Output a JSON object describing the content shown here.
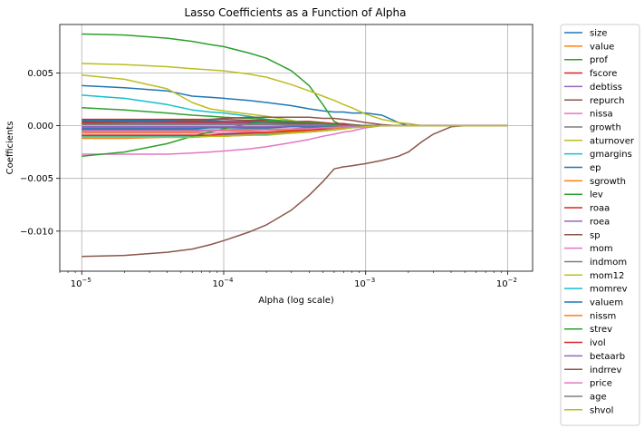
{
  "chart_data": {
    "type": "line",
    "title": "Lasso Coefficients as a Function of Alpha",
    "xlabel": "Alpha (log scale)",
    "ylabel": "Coefficients",
    "xscale": "log",
    "xlim": [
      7e-06,
      0.015
    ],
    "ylim": [
      -0.0138,
      0.0096
    ],
    "x_ticks": [
      {
        "value": 1e-05,
        "base": "10",
        "exp": "−5"
      },
      {
        "value": 0.0001,
        "base": "10",
        "exp": "−4"
      },
      {
        "value": 0.001,
        "base": "10",
        "exp": "−3"
      },
      {
        "value": 0.01,
        "base": "10",
        "exp": "−2"
      }
    ],
    "y_ticks": [
      {
        "value": 0.005,
        "label": "0.005"
      },
      {
        "value": 0.0,
        "label": "0.000"
      },
      {
        "value": -0.005,
        "label": "−0.005"
      },
      {
        "value": -0.01,
        "label": "−0.010"
      }
    ],
    "grid": true,
    "legend_position": "outside-right",
    "x": [
      1e-05,
      2e-05,
      4e-05,
      6e-05,
      8e-05,
      0.0001,
      0.00015,
      0.0002,
      0.0003,
      0.0004,
      0.0005,
      0.0006,
      0.0007,
      0.0008,
      0.001,
      0.0013,
      0.0017,
      0.002,
      0.0025,
      0.003,
      0.004,
      0.005,
      0.007,
      0.01
    ],
    "series": [
      {
        "name": "size",
        "color": "#1f77b4",
        "values": [
          0.0038,
          0.0036,
          0.0033,
          0.0028,
          0.0027,
          0.0026,
          0.0024,
          0.0022,
          0.0019,
          0.0016,
          0.0014,
          0.0013,
          0.0013,
          0.0012,
          0.0012,
          0.001,
          0.0003,
          0,
          0,
          0,
          0,
          0,
          0,
          0
        ]
      },
      {
        "name": "value",
        "color": "#ff7f0e",
        "values": [
          -0.0012,
          -0.0012,
          -0.0011,
          -0.0011,
          -0.001,
          -0.001,
          -0.0009,
          -0.0008,
          -0.0006,
          -0.0004,
          -0.0003,
          -0.0002,
          -0.0001,
          -0.0001,
          0,
          0,
          0,
          0,
          0,
          0,
          0,
          0,
          0,
          0
        ]
      },
      {
        "name": "prof",
        "color": "#2ca02c",
        "values": [
          0.0087,
          0.0086,
          0.0083,
          0.008,
          0.0077,
          0.0075,
          0.0069,
          0.0064,
          0.0052,
          0.0038,
          0.002,
          0.0004,
          0,
          0,
          0,
          0,
          0,
          0,
          0,
          0,
          0,
          0,
          0,
          0
        ]
      },
      {
        "name": "fscore",
        "color": "#d62728",
        "values": [
          0.0006,
          0.0006,
          0.0006,
          0.0006,
          0.0006,
          0.0006,
          0.0005,
          0.0005,
          0.0004,
          0.0004,
          0.0003,
          0.0002,
          0.0002,
          0.0001,
          0,
          0,
          0,
          0,
          0,
          0,
          0,
          0,
          0,
          0
        ]
      },
      {
        "name": "debtiss",
        "color": "#9467bd",
        "values": [
          -0.0002,
          -0.0002,
          -0.0002,
          -0.0002,
          -0.0002,
          -0.0002,
          -0.0002,
          -0.0001,
          -0.0001,
          -0.0001,
          -0.0001,
          -0.0001,
          0,
          0,
          0,
          0,
          0,
          0,
          0,
          0,
          0,
          0,
          0,
          0
        ]
      },
      {
        "name": "repurch",
        "color": "#8c564b",
        "values": [
          0.0004,
          0.0004,
          0.0004,
          0.0004,
          0.0004,
          0.0003,
          0.0003,
          0.0003,
          0.0002,
          0.0002,
          0.0002,
          0.0001,
          0.0001,
          0.0001,
          0,
          0,
          0,
          0,
          0,
          0,
          0,
          0,
          0,
          0
        ]
      },
      {
        "name": "nissa",
        "color": "#e377c2",
        "values": [
          -0.0007,
          -0.0007,
          -0.0007,
          -0.0007,
          -0.0007,
          -0.0007,
          -0.0006,
          -0.0006,
          -0.0005,
          -0.0004,
          -0.0003,
          -0.0002,
          -0.0002,
          -0.0001,
          0,
          0,
          0,
          0,
          0,
          0,
          0,
          0,
          0,
          0
        ]
      },
      {
        "name": "growth",
        "color": "#7f7f7f",
        "values": [
          -0.0004,
          -0.0004,
          -0.0004,
          -0.0004,
          -0.0004,
          -0.0004,
          -0.0003,
          -0.0003,
          -0.0003,
          -0.0002,
          -0.0002,
          -0.0002,
          -0.0001,
          -0.0001,
          0,
          0,
          0,
          0,
          0,
          0,
          0,
          0,
          0,
          0
        ]
      },
      {
        "name": "aturnover",
        "color": "#bcbd22",
        "values": [
          0.0048,
          0.0044,
          0.0035,
          0.0022,
          0.0016,
          0.0014,
          0.0011,
          0.0009,
          0.0005,
          0.0002,
          0.0001,
          0,
          0,
          0,
          0,
          0,
          0,
          0,
          0,
          0,
          0,
          0,
          0,
          0
        ]
      },
      {
        "name": "gmargins",
        "color": "#17becf",
        "values": [
          0.0029,
          0.0026,
          0.002,
          0.0015,
          0.0013,
          0.0012,
          0.0009,
          0.0006,
          0.0002,
          0,
          0,
          0,
          0,
          0,
          0,
          0,
          0,
          0,
          0,
          0,
          0,
          0,
          0,
          0
        ]
      },
      {
        "name": "ep",
        "color": "#1f77b4",
        "values": [
          0.0005,
          0.0005,
          0.0005,
          0.0005,
          0.0005,
          0.0004,
          0.0004,
          0.0004,
          0.0003,
          0.0002,
          0.0002,
          0.0001,
          0.0001,
          0,
          0,
          0,
          0,
          0,
          0,
          0,
          0,
          0,
          0,
          0
        ]
      },
      {
        "name": "sgrowth",
        "color": "#ff7f0e",
        "values": [
          -0.0009,
          -0.0009,
          -0.0009,
          -0.0009,
          -0.0009,
          -0.0008,
          -0.0008,
          -0.0007,
          -0.0006,
          -0.0005,
          -0.0004,
          -0.0003,
          -0.0002,
          -0.0001,
          0,
          0,
          0,
          0,
          0,
          0,
          0,
          0,
          0,
          0
        ]
      },
      {
        "name": "lev",
        "color": "#2ca02c",
        "values": [
          0.0017,
          0.0015,
          0.0012,
          0.001,
          0.0009,
          0.0008,
          0.0007,
          0.0006,
          0.0004,
          0.0003,
          0.0002,
          0.0001,
          0,
          0,
          0,
          0,
          0,
          0,
          0,
          0,
          0,
          0,
          0,
          0
        ]
      },
      {
        "name": "roaa",
        "color": "#d62728",
        "values": [
          0.0003,
          0.0003,
          0.0003,
          0.0003,
          0.0003,
          0.0003,
          0.0003,
          0.0002,
          0.0002,
          0.0002,
          0.0001,
          0.0001,
          0.0001,
          0,
          0,
          0,
          0,
          0,
          0,
          0,
          0,
          0,
          0,
          0
        ]
      },
      {
        "name": "roea",
        "color": "#9467bd",
        "values": [
          0.0002,
          0.0002,
          0.0002,
          0.0002,
          0.0002,
          0.0002,
          0.0002,
          0.0002,
          0.0001,
          0.0001,
          0.0001,
          0.0001,
          0,
          0,
          0,
          0,
          0,
          0,
          0,
          0,
          0,
          0,
          0,
          0
        ]
      },
      {
        "name": "sp",
        "color": "#8c564b",
        "values": [
          0.0002,
          0.0003,
          0.0004,
          0.0005,
          0.0006,
          0.0007,
          0.0008,
          0.0008,
          0.0008,
          0.0008,
          0.0007,
          0.0007,
          0.0006,
          0.0005,
          0.0003,
          0.0001,
          0,
          0,
          0,
          0,
          0,
          0,
          0,
          0
        ]
      },
      {
        "name": "mom",
        "color": "#e377c2",
        "values": [
          -0.0027,
          -0.0027,
          -0.0027,
          -0.0026,
          -0.0025,
          -0.0024,
          -0.0022,
          -0.002,
          -0.0016,
          -0.0013,
          -0.001,
          -0.0008,
          -0.0006,
          -0.0005,
          -0.0002,
          0,
          0,
          0,
          0,
          0,
          0,
          0,
          0,
          0
        ]
      },
      {
        "name": "indmom",
        "color": "#7f7f7f",
        "values": [
          -0.0001,
          -0.0001,
          -0.0001,
          -0.0001,
          -0.0001,
          -0.0001,
          -0.0001,
          -0.0001,
          -0.0001,
          0,
          0,
          0,
          0,
          0,
          0,
          0,
          0,
          0,
          0,
          0,
          0,
          0,
          0,
          0
        ]
      },
      {
        "name": "mom12",
        "color": "#bcbd22",
        "values": [
          0.0059,
          0.0058,
          0.0056,
          0.0054,
          0.0053,
          0.0052,
          0.0049,
          0.0046,
          0.0039,
          0.0033,
          0.0028,
          0.0024,
          0.002,
          0.0017,
          0.0011,
          0.0006,
          0.0003,
          0.0002,
          0,
          0,
          0,
          0,
          0,
          0
        ]
      },
      {
        "name": "momrev",
        "color": "#17becf",
        "values": [
          -0.001,
          -0.001,
          -0.001,
          -0.001,
          -0.001,
          -0.0009,
          -0.0009,
          -0.0008,
          -0.0007,
          -0.0006,
          -0.0005,
          -0.0004,
          -0.0003,
          -0.0002,
          -0.0001,
          0,
          0,
          0,
          0,
          0,
          0,
          0,
          0,
          0
        ]
      },
      {
        "name": "valuem",
        "color": "#1f77b4",
        "values": [
          -0.0003,
          -0.0003,
          -0.0003,
          -0.0003,
          -0.0002,
          -0.0002,
          -0.0002,
          -0.0002,
          -0.0001,
          -0.0001,
          -0.0001,
          0,
          0,
          0,
          0,
          0,
          0,
          0,
          0,
          0,
          0,
          0,
          0,
          0
        ]
      },
      {
        "name": "nissm",
        "color": "#ff7f0e",
        "values": [
          -0.0006,
          -0.0006,
          -0.0006,
          -0.0006,
          -0.0005,
          -0.0005,
          -0.0005,
          -0.0004,
          -0.0004,
          -0.0003,
          -0.0002,
          -0.0002,
          -0.0001,
          -0.0001,
          0,
          0,
          0,
          0,
          0,
          0,
          0,
          0,
          0,
          0
        ]
      },
      {
        "name": "strev",
        "color": "#2ca02c",
        "values": [
          -0.0029,
          -0.0025,
          -0.0017,
          -0.001,
          -0.0006,
          -0.0003,
          0.0002,
          0.0004,
          0.0004,
          0.0003,
          0.0002,
          0.0001,
          0,
          0,
          0,
          0,
          0,
          0,
          0,
          0,
          0,
          0,
          0,
          0
        ]
      },
      {
        "name": "ivol",
        "color": "#d62728",
        "values": [
          -0.0009,
          -0.0009,
          -0.0009,
          -0.0009,
          -0.0009,
          -0.0008,
          -0.0007,
          -0.0006,
          -0.0005,
          -0.0004,
          -0.0003,
          -0.0002,
          -0.0001,
          -0.0001,
          0,
          0,
          0,
          0,
          0,
          0,
          0,
          0,
          0,
          0
        ]
      },
      {
        "name": "betaarb",
        "color": "#9467bd",
        "values": [
          -0.0001,
          -0.0001,
          -0.0001,
          -0.0001,
          -0.0001,
          -0.0001,
          -0.0001,
          -0.0001,
          0,
          0,
          0,
          0,
          0,
          0,
          0,
          0,
          0,
          0,
          0,
          0,
          0,
          0,
          0,
          0
        ]
      },
      {
        "name": "indrrev",
        "color": "#8c564b",
        "values": [
          -0.0124,
          -0.0123,
          -0.012,
          -0.0117,
          -0.0113,
          -0.0109,
          -0.0101,
          -0.0094,
          -0.008,
          -0.0066,
          -0.0053,
          -0.0041,
          -0.0039,
          -0.0038,
          -0.0036,
          -0.0033,
          -0.0029,
          -0.0025,
          -0.0015,
          -0.0008,
          -0.0001,
          0,
          0,
          0
        ]
      },
      {
        "name": "price",
        "color": "#e377c2",
        "values": [
          -0.0005,
          -0.0005,
          -0.0005,
          -0.0005,
          -0.0005,
          -0.0004,
          -0.0004,
          -0.0004,
          -0.0003,
          -0.0003,
          -0.0002,
          -0.0002,
          -0.0001,
          -0.0001,
          0,
          0,
          0,
          0,
          0,
          0,
          0,
          0,
          0,
          0
        ]
      },
      {
        "name": "age",
        "color": "#7f7f7f",
        "values": [
          0.0001,
          0.0001,
          0.0001,
          0.0001,
          0.0001,
          0.0001,
          0.0001,
          0.0001,
          0.0001,
          0,
          0,
          0,
          0,
          0,
          0,
          0,
          0,
          0,
          0,
          0,
          0,
          0,
          0,
          0
        ]
      },
      {
        "name": "shvol",
        "color": "#bcbd22",
        "values": [
          -0.0011,
          -0.0011,
          -0.0011,
          -0.0011,
          -0.001,
          -0.001,
          -0.0009,
          -0.0009,
          -0.0007,
          -0.0006,
          -0.0005,
          -0.0004,
          -0.0003,
          -0.0002,
          -0.0001,
          0,
          0,
          0,
          0,
          0,
          0,
          0,
          0,
          0
        ]
      }
    ]
  }
}
